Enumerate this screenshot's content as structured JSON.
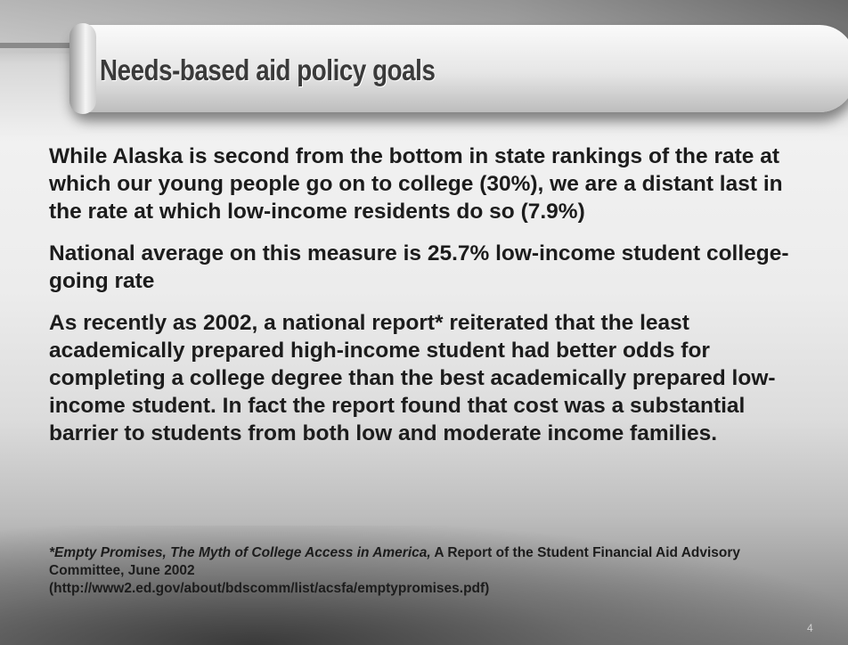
{
  "header": {
    "title": "Needs-based aid policy goals"
  },
  "paragraphs": [
    "While Alaska is second from the bottom in state rankings of the rate at which our young people go on to college (30%), we are a distant last in the rate at which low-income residents do so (7.9%)",
    "National average on this measure is 25.7% low-income student college-going rate",
    "As recently as 2002, a national report* reiterated that the least academically prepared high-income student had better odds for completing a college degree than the best academically prepared low-income student.  In fact the report found that cost was a substantial barrier to students from both low and moderate income families."
  ],
  "footnote": {
    "citation": "*Empty Promises, The Myth of College Access in America,",
    "text": "A Report of the Student Financial Aid Advisory Committee, June 2002",
    "url": "(http://www2.ed.gov/about/bdscomm/list/acsfa/emptypromises.pdf)"
  },
  "page_number": "4"
}
